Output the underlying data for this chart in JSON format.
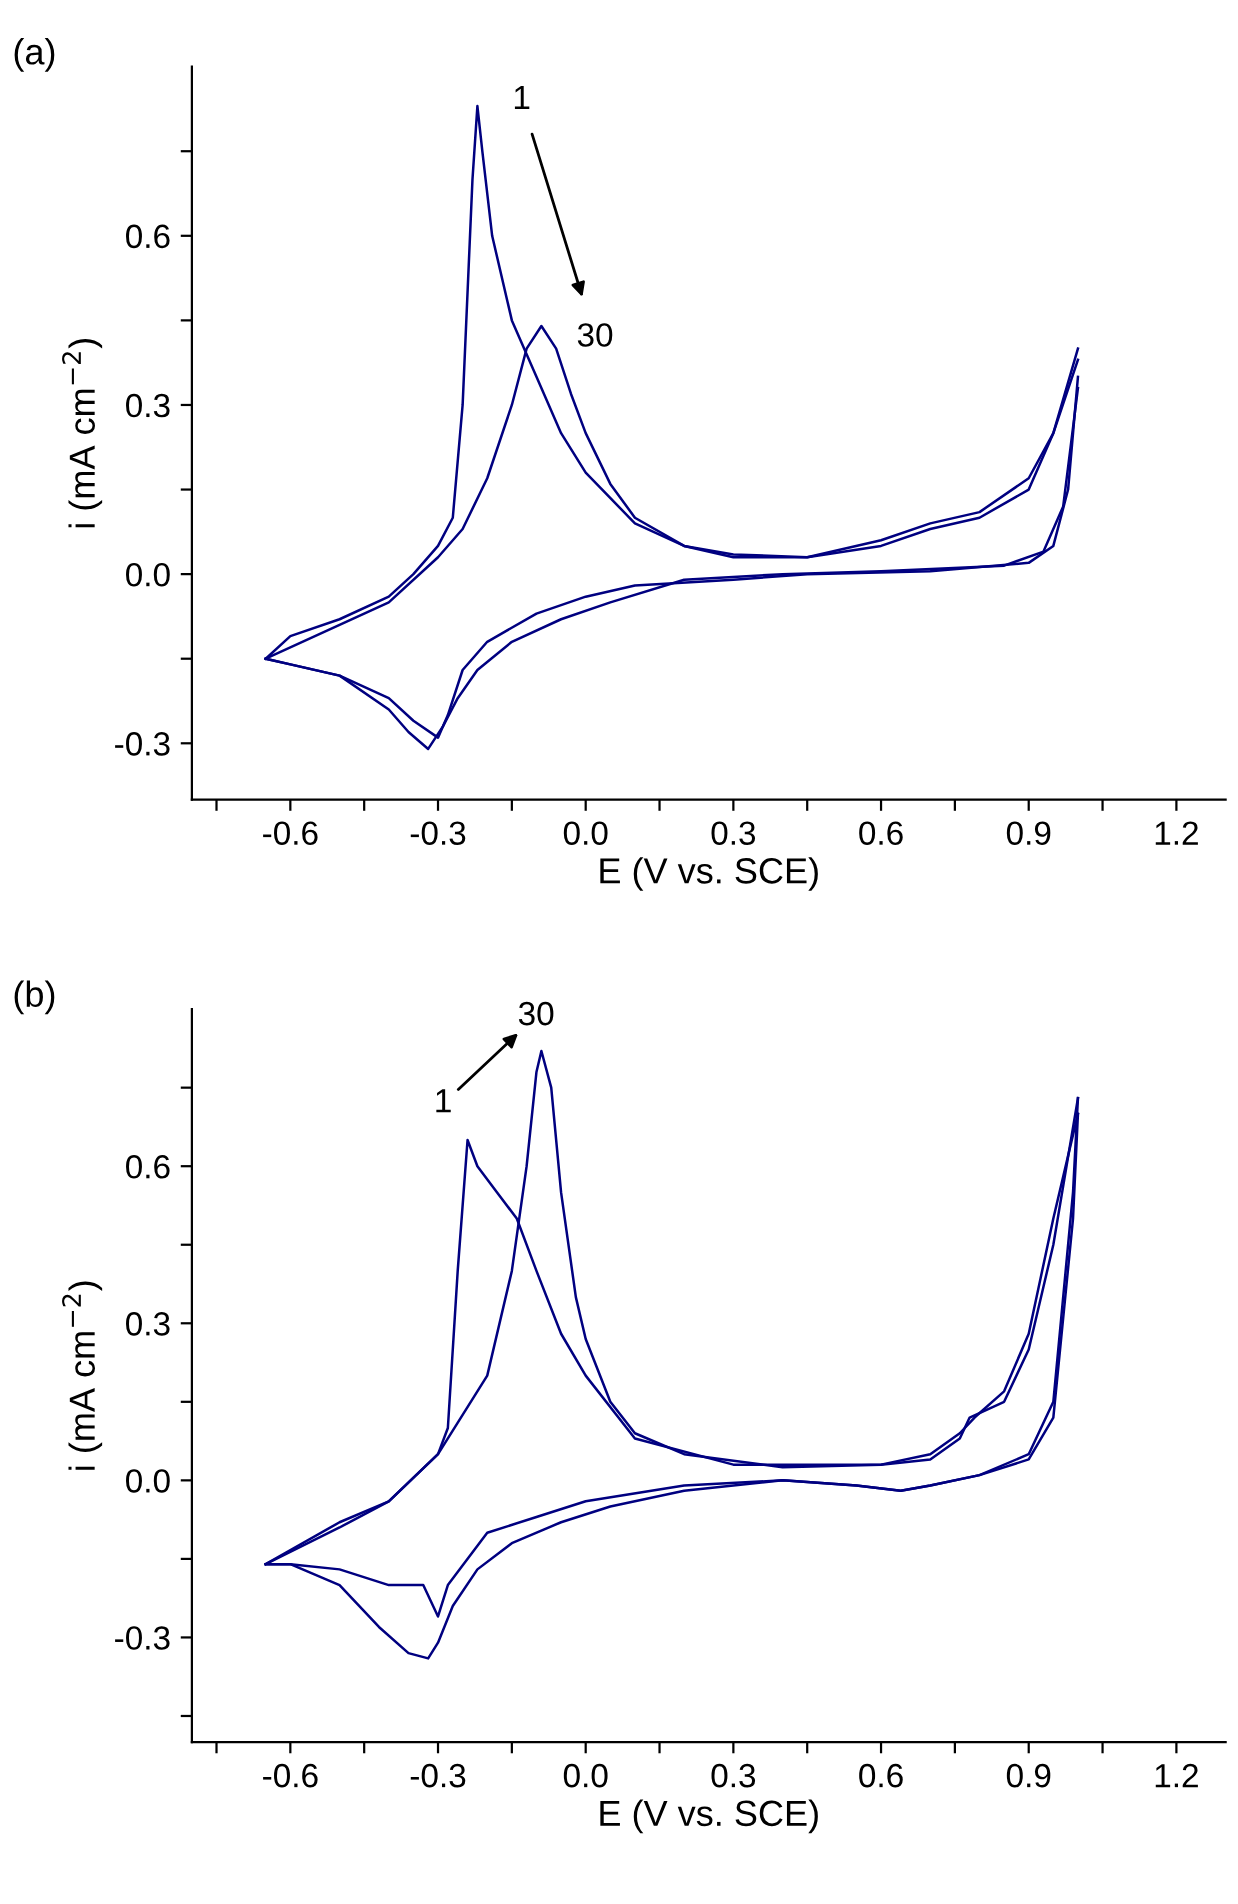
{
  "chart_data": [
    {
      "type": "line",
      "title": "(a)",
      "xlabel": "E (V vs. SCE)",
      "ylabel": "i (mA cm$^{−2}$)",
      "xlim": [
        -0.8,
        1.3
      ],
      "ylim": [
        -0.4,
        0.9
      ],
      "xticks": [
        {
          "value": -0.75,
          "label": null
        },
        -0.6,
        {
          "value": -0.45,
          "label": null
        },
        -0.3,
        {
          "value": -0.15,
          "label": null
        },
        {
          "value": 0,
          "label": "0.0"
        },
        {
          "value": 0.15,
          "label": null
        },
        0.3,
        {
          "value": 0.45,
          "label": null
        },
        0.6,
        {
          "value": 0.75,
          "label": null
        },
        0.9,
        {
          "value": 1.05,
          "label": null
        },
        1.2
      ],
      "yticks": [
        -0.3,
        {
          "value": -0.15,
          "label": null
        },
        {
          "value": 0,
          "label": "0.0"
        },
        {
          "value": 0.15,
          "label": null
        },
        0.3,
        {
          "value": 0.45,
          "label": null
        },
        0.6,
        {
          "value": 0.75,
          "label": null
        }
      ],
      "grid": false,
      "marker": "none",
      "line_style": "solid",
      "annotations": [
        "1",
        "30"
      ],
      "series": [
        {
          "color": "#000080",
          "x": [
            -0.65,
            -0.6,
            -0.5,
            -0.4,
            -0.35,
            -0.3,
            -0.27,
            -0.25,
            -0.23,
            -0.22,
            -0.21,
            -0.19,
            -0.15,
            -0.1,
            -0.05,
            0.0,
            0.1,
            0.2,
            0.3,
            0.45,
            0.6,
            0.7,
            0.8,
            0.9,
            0.95,
            1.0
          ],
          "values": [
            -0.15,
            -0.11,
            -0.08,
            -0.04,
            0.0,
            0.05,
            0.1,
            0.3,
            0.7,
            0.83,
            0.75,
            0.6,
            0.45,
            0.35,
            0.25,
            0.18,
            0.09,
            0.05,
            0.035,
            0.03,
            0.05,
            0.08,
            0.1,
            0.15,
            0.25,
            0.4
          ]
        },
        {
          "color": "#000080",
          "x": [
            -0.65,
            -0.6,
            -0.5,
            -0.4,
            -0.35,
            -0.3,
            -0.28,
            -0.25,
            -0.2,
            -0.1,
            0.0,
            0.1,
            0.3,
            0.45,
            0.7,
            0.9,
            0.95,
            0.98,
            1.0
          ],
          "values": [
            -0.15,
            -0.16,
            -0.18,
            -0.22,
            -0.26,
            -0.29,
            -0.25,
            -0.17,
            -0.12,
            -0.07,
            -0.04,
            -0.02,
            -0.01,
            0.0,
            0.005,
            0.02,
            0.05,
            0.15,
            0.35
          ]
        },
        {
          "color": "#000080",
          "x": [
            -0.65,
            -0.5,
            -0.4,
            -0.3,
            -0.25,
            -0.2,
            -0.15,
            -0.12,
            -0.09,
            -0.06,
            -0.03,
            0.0,
            0.05,
            0.1,
            0.2,
            0.3,
            0.45,
            0.6,
            0.7,
            0.8,
            0.9,
            0.95,
            1.0
          ],
          "values": [
            -0.15,
            -0.09,
            -0.05,
            0.03,
            0.08,
            0.17,
            0.3,
            0.4,
            0.44,
            0.4,
            0.32,
            0.25,
            0.16,
            0.1,
            0.05,
            0.03,
            0.03,
            0.06,
            0.09,
            0.11,
            0.17,
            0.25,
            0.38
          ]
        },
        {
          "color": "#000080",
          "x": [
            -0.65,
            -0.6,
            -0.5,
            -0.4,
            -0.36,
            -0.32,
            -0.29,
            -0.26,
            -0.22,
            -0.15,
            -0.05,
            0.05,
            0.2,
            0.4,
            0.6,
            0.85,
            0.93,
            0.97,
            1.0
          ],
          "values": [
            -0.15,
            -0.16,
            -0.18,
            -0.24,
            -0.28,
            -0.31,
            -0.27,
            -0.22,
            -0.17,
            -0.12,
            -0.08,
            -0.05,
            -0.01,
            0.0,
            0.005,
            0.015,
            0.04,
            0.12,
            0.33
          ]
        }
      ]
    },
    {
      "type": "line",
      "title": "(b)",
      "xlabel": "E (V vs. SCE)",
      "ylabel": "i (mA cm$^{−2}$)",
      "xlim": [
        -0.8,
        1.3
      ],
      "ylim": [
        -0.5,
        0.9
      ],
      "xticks": [
        {
          "value": -0.75,
          "label": null
        },
        -0.6,
        {
          "value": -0.45,
          "label": null
        },
        -0.3,
        {
          "value": -0.15,
          "label": null
        },
        {
          "value": 0,
          "label": "0.0"
        },
        {
          "value": 0.15,
          "label": null
        },
        0.3,
        {
          "value": 0.45,
          "label": null
        },
        0.6,
        {
          "value": 0.75,
          "label": null
        },
        0.9,
        {
          "value": 1.05,
          "label": null
        },
        1.2
      ],
      "yticks": [
        {
          "value": -0.45,
          "label": null
        },
        -0.3,
        {
          "value": -0.15,
          "label": null
        },
        {
          "value": 0,
          "label": "0.0"
        },
        {
          "value": 0.15,
          "label": null
        },
        0.3,
        {
          "value": 0.45,
          "label": null
        },
        0.6,
        {
          "value": 0.75,
          "label": null
        }
      ],
      "grid": false,
      "marker": "none",
      "line_style": "solid",
      "annotations": [
        "1",
        "30"
      ],
      "series": [
        {
          "color": "#000080",
          "x": [
            -0.65,
            -0.5,
            -0.4,
            -0.3,
            -0.28,
            -0.26,
            -0.24,
            -0.22,
            -0.18,
            -0.14,
            -0.1,
            -0.05,
            0.0,
            0.1,
            0.3,
            0.6,
            0.7,
            0.76,
            0.78,
            0.85,
            0.9,
            0.95,
            1.0
          ],
          "values": [
            -0.16,
            -0.09,
            -0.04,
            0.05,
            0.1,
            0.4,
            0.65,
            0.6,
            0.55,
            0.5,
            0.4,
            0.28,
            0.2,
            0.08,
            0.03,
            0.03,
            0.04,
            0.08,
            0.12,
            0.15,
            0.25,
            0.45,
            0.73
          ]
        },
        {
          "color": "#000080",
          "x": [
            -0.65,
            -0.6,
            -0.5,
            -0.4,
            -0.33,
            -0.3,
            -0.28,
            -0.2,
            -0.1,
            0.0,
            0.2,
            0.4,
            0.55,
            0.64,
            0.7,
            0.8,
            0.9,
            0.95,
            0.99,
            1.0
          ],
          "values": [
            -0.16,
            -0.16,
            -0.17,
            -0.2,
            -0.2,
            -0.26,
            -0.2,
            -0.1,
            -0.07,
            -0.04,
            -0.01,
            0.0,
            -0.01,
            -0.02,
            -0.01,
            0.01,
            0.05,
            0.15,
            0.55,
            0.73
          ]
        },
        {
          "color": "#000080",
          "x": [
            -0.65,
            -0.5,
            -0.4,
            -0.3,
            -0.2,
            -0.15,
            -0.12,
            -0.1,
            -0.09,
            -0.07,
            -0.05,
            -0.02,
            0.0,
            0.05,
            0.1,
            0.2,
            0.4,
            0.6,
            0.7,
            0.76,
            0.79,
            0.85,
            0.9,
            0.95,
            1.0
          ],
          "values": [
            -0.16,
            -0.08,
            -0.04,
            0.05,
            0.2,
            0.4,
            0.6,
            0.78,
            0.82,
            0.75,
            0.55,
            0.35,
            0.27,
            0.15,
            0.09,
            0.05,
            0.025,
            0.03,
            0.05,
            0.09,
            0.12,
            0.17,
            0.28,
            0.5,
            0.7
          ]
        },
        {
          "color": "#000080",
          "x": [
            -0.65,
            -0.6,
            -0.5,
            -0.42,
            -0.36,
            -0.32,
            -0.3,
            -0.27,
            -0.22,
            -0.15,
            -0.05,
            0.05,
            0.2,
            0.4,
            0.55,
            0.64,
            0.7,
            0.8,
            0.9,
            0.95,
            0.99,
            1.0
          ],
          "values": [
            -0.16,
            -0.16,
            -0.2,
            -0.28,
            -0.33,
            -0.34,
            -0.31,
            -0.24,
            -0.17,
            -0.12,
            -0.08,
            -0.05,
            -0.02,
            0.0,
            -0.01,
            -0.02,
            -0.01,
            0.01,
            0.04,
            0.12,
            0.5,
            0.7
          ]
        }
      ]
    }
  ]
}
